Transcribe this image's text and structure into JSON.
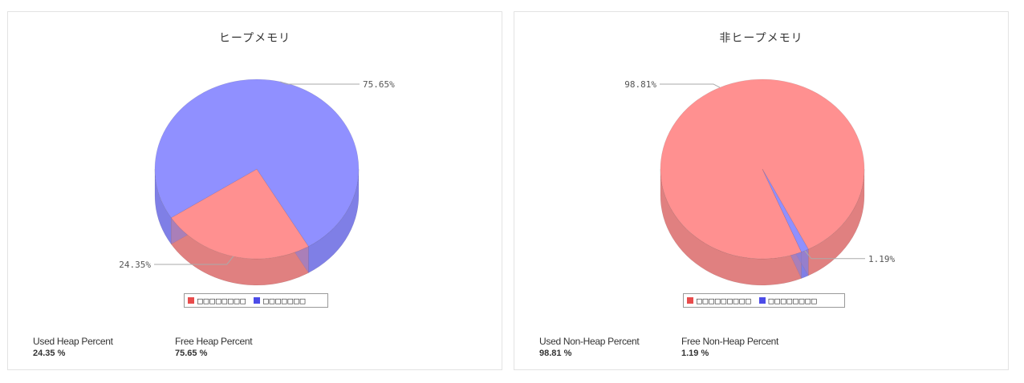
{
  "panels": [
    {
      "title": "ヒープメモリ",
      "legend": [
        "□□□□□□□□",
        "□□□□□□□"
      ],
      "stats": [
        {
          "label": "Used Heap Percent",
          "value": "24.35 %"
        },
        {
          "label": "Free Heap Percent",
          "value": "75.65 %"
        }
      ]
    },
    {
      "title": "非ヒープメモリ",
      "legend": [
        "□□□□□□□□□",
        "□□□□□□□□"
      ],
      "stats": [
        {
          "label": "Used Non-Heap Percent",
          "value": "98.81 %"
        },
        {
          "label": "Free Non-Heap Percent",
          "value": "1.19 %"
        }
      ]
    }
  ],
  "colors": {
    "used": "#ff9090",
    "used_side": "#e08080",
    "used_legend": "#e84c4c",
    "free": "#9090ff",
    "free_side": "#7f7fe6",
    "free_legend": "#4c4ce8"
  },
  "chart_data": [
    {
      "type": "pie",
      "title": "ヒープメモリ",
      "slices": [
        {
          "label": "24.35%",
          "value": 24.35,
          "series": "used"
        },
        {
          "label": "75.65%",
          "value": 75.65,
          "series": "free"
        }
      ],
      "style": "3d"
    },
    {
      "type": "pie",
      "title": "非ヒープメモリ",
      "slices": [
        {
          "label": "98.81%",
          "value": 98.81,
          "series": "used"
        },
        {
          "label": "1.19%",
          "value": 1.19,
          "series": "free"
        }
      ],
      "style": "3d"
    }
  ]
}
